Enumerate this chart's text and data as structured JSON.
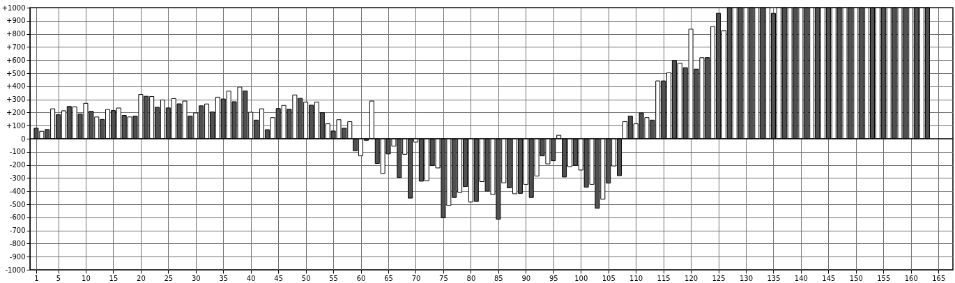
{
  "chart_data": {
    "type": "bar",
    "xlim": [
      0.5,
      167
    ],
    "xticks": [
      1,
      5,
      10,
      15,
      20,
      25,
      30,
      35,
      40,
      45,
      50,
      55,
      60,
      65,
      70,
      75,
      80,
      85,
      90,
      95,
      100,
      105,
      110,
      115,
      120,
      125,
      130,
      135,
      140,
      145,
      150,
      155,
      160,
      165
    ],
    "ylim": [
      -1000,
      1000
    ],
    "yticks": [
      -1000,
      -900,
      -800,
      -700,
      -600,
      -500,
      -400,
      -300,
      -200,
      -100,
      0,
      {
        "value": 100,
        "label": "+100"
      },
      {
        "value": 200,
        "label": "+200"
      },
      {
        "value": 300,
        "label": "+300"
      },
      {
        "value": 400,
        "label": "+400"
      },
      {
        "value": 500,
        "label": "+500"
      },
      {
        "value": 600,
        "label": "+600"
      },
      {
        "value": 700,
        "label": "+700"
      },
      {
        "value": 800,
        "label": "+800"
      },
      {
        "value": 900,
        "label": "+900"
      },
      {
        "value": 1000,
        "label": "+1000"
      }
    ],
    "grid": true,
    "ref_lines": [
      {
        "axis": "y",
        "value": 0,
        "color": "#000000"
      }
    ],
    "series": [
      {
        "color": "#505050",
        "x": [
          1,
          3,
          5,
          7,
          9,
          11,
          13,
          15,
          17,
          19,
          21,
          23,
          25,
          27,
          29,
          31,
          33,
          35,
          37,
          39,
          41,
          43,
          45,
          47,
          49,
          51,
          53,
          55,
          57,
          59,
          61,
          63,
          65,
          67,
          69,
          71,
          73,
          75,
          77,
          79,
          81,
          83,
          85,
          87,
          89,
          91,
          93,
          95,
          97,
          99,
          101,
          103,
          105,
          107,
          109,
          111,
          113,
          115,
          117,
          119,
          121,
          123,
          125,
          127,
          129,
          131,
          133,
          135,
          137,
          139,
          141,
          143,
          145,
          147,
          149,
          151,
          153,
          155,
          157,
          159,
          161,
          163
        ],
        "values": [
          80,
          70,
          183,
          246,
          189,
          209,
          147,
          215,
          178,
          173,
          324,
          240,
          235,
          266,
          173,
          251,
          204,
          303,
          282,
          365,
          142,
          69,
          230,
          225,
          308,
          256,
          199,
          59,
          80,
          -92,
          -12,
          -189,
          -116,
          -296,
          -453,
          -324,
          -204,
          -604,
          -448,
          -365,
          -479,
          -400,
          -614,
          -375,
          -417,
          -448,
          -131,
          -168,
          -292,
          -204,
          -370,
          -531,
          -339,
          -282,
          173,
          197,
          142,
          441,
          597,
          542,
          531,
          619,
          957,
          1000,
          1000,
          1000,
          1000,
          957,
          1000,
          1000,
          1000,
          1000,
          1000,
          1000,
          1000,
          1000,
          1000,
          1000,
          1000,
          1000,
          1000,
          1000
        ]
      },
      {
        "color": "#ffffff",
        "x": [
          2,
          4,
          6,
          8,
          10,
          12,
          14,
          16,
          18,
          20,
          22,
          24,
          26,
          28,
          30,
          32,
          34,
          36,
          38,
          40,
          42,
          44,
          46,
          48,
          50,
          52,
          54,
          56,
          58,
          60,
          62,
          64,
          66,
          68,
          70,
          72,
          74,
          76,
          78,
          80,
          82,
          84,
          86,
          88,
          90,
          92,
          94,
          96,
          98,
          100,
          102,
          104,
          106,
          108,
          110,
          112,
          114,
          116,
          118,
          120,
          122,
          124,
          126,
          128,
          130,
          132,
          134,
          136,
          138,
          140,
          142,
          144,
          146,
          148,
          150,
          152,
          154,
          156,
          158,
          160,
          162
        ],
        "values": [
          57,
          228,
          213,
          244,
          270,
          166,
          223,
          234,
          166,
          337,
          322,
          296,
          306,
          287,
          197,
          265,
          317,
          363,
          394,
          202,
          228,
          161,
          254,
          334,
          280,
          280,
          114,
          145,
          130,
          -131,
          287,
          -265,
          -57,
          -119,
          -26,
          -322,
          -223,
          -509,
          -410,
          -483,
          -327,
          -426,
          -337,
          -420,
          -348,
          -285,
          -192,
          26,
          -213,
          -239,
          -348,
          -462,
          -208,
          130,
          114,
          161,
          441,
          503,
          576,
          836,
          618,
          856,
          825,
          1000,
          1000,
          1000,
          1000,
          1000,
          1000,
          1000,
          1000,
          1000,
          1000,
          1000,
          1000,
          1000,
          1000,
          1000,
          1000,
          1000,
          1000
        ]
      }
    ]
  }
}
